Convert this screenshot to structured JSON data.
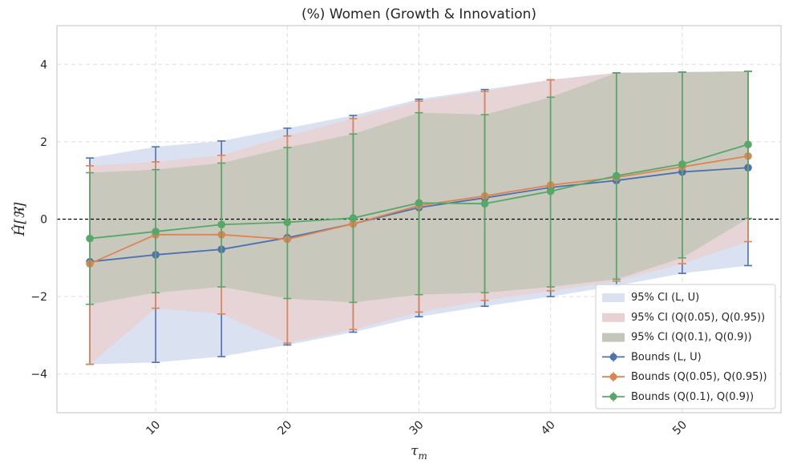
{
  "chart_data": {
    "type": "line",
    "title": "(%) Women (Growth & Innovation)",
    "xlabel": "τ",
    "xlabel_sub": "m",
    "ylabel": "Ĥ[ℜ]",
    "xlim": [
      2.5,
      57.5
    ],
    "ylim": [
      -5,
      5
    ],
    "xticks": [
      10,
      20,
      30,
      40,
      50
    ],
    "yticks": [
      -4,
      -2,
      0,
      2,
      4
    ],
    "x": [
      5,
      10,
      15,
      20,
      25,
      30,
      35,
      40,
      45,
      50,
      55
    ],
    "reference_line": 0,
    "bands": [
      {
        "name": "95% CI (L, U)",
        "color": "#dae1f1",
        "lower": [
          -3.75,
          -3.7,
          -3.55,
          -3.25,
          -2.92,
          -2.52,
          -2.25,
          -2.0,
          -1.72,
          -1.4,
          -1.2
        ],
        "upper": [
          1.58,
          1.87,
          2.02,
          2.35,
          2.68,
          3.1,
          3.35,
          3.6,
          3.78,
          3.8,
          3.82
        ]
      },
      {
        "name": "95% CI (Q(0.05), Q(0.95))",
        "color": "#e7d1d2",
        "lower": [
          -3.75,
          -2.3,
          -2.45,
          -3.2,
          -2.85,
          -2.4,
          -2.1,
          -1.85,
          -1.6,
          -1.15,
          -0.58
        ],
        "upper": [
          1.38,
          1.48,
          1.65,
          2.15,
          2.6,
          3.05,
          3.3,
          3.6,
          3.78,
          3.8,
          3.82
        ]
      },
      {
        "name": "95% CI (Q(0.1), Q(0.9))",
        "color": "#c3c6b9",
        "lower": [
          -2.2,
          -1.9,
          -1.75,
          -2.05,
          -2.15,
          -1.95,
          -1.9,
          -1.75,
          -1.55,
          -1.0,
          0.02
        ],
        "upper": [
          1.2,
          1.28,
          1.45,
          1.85,
          2.2,
          2.75,
          2.7,
          3.15,
          3.78,
          3.8,
          3.82
        ]
      }
    ],
    "series": [
      {
        "name": "Bounds (L, U)",
        "color": "#4c72b0",
        "values": [
          -1.1,
          -0.92,
          -0.78,
          -0.48,
          -0.12,
          0.3,
          0.55,
          0.82,
          1.0,
          1.22,
          1.33
        ],
        "err_low": [
          -3.75,
          -3.7,
          -3.55,
          -3.25,
          -2.92,
          -2.52,
          -2.25,
          -2.0,
          -1.72,
          -1.4,
          -1.2
        ],
        "err_high": [
          1.58,
          1.87,
          2.02,
          2.35,
          2.68,
          3.1,
          3.35,
          3.6,
          3.78,
          3.8,
          3.82
        ]
      },
      {
        "name": "Bounds (Q(0.05), Q(0.95))",
        "color": "#dd8452",
        "values": [
          -1.15,
          -0.4,
          -0.4,
          -0.52,
          -0.12,
          0.35,
          0.6,
          0.88,
          1.08,
          1.35,
          1.63
        ],
        "err_low": [
          -3.75,
          -2.3,
          -2.45,
          -3.2,
          -2.85,
          -2.4,
          -2.1,
          -1.85,
          -1.6,
          -1.15,
          -0.58
        ],
        "err_high": [
          1.38,
          1.48,
          1.65,
          2.15,
          2.6,
          3.05,
          3.3,
          3.6,
          3.78,
          3.8,
          3.82
        ]
      },
      {
        "name": "Bounds (Q(0.1), Q(0.9))",
        "color": "#55a868",
        "values": [
          -0.5,
          -0.32,
          -0.14,
          -0.08,
          0.03,
          0.42,
          0.4,
          0.72,
          1.12,
          1.42,
          1.93
        ],
        "err_low": [
          -2.2,
          -1.9,
          -1.75,
          -2.05,
          -2.15,
          -1.95,
          -1.9,
          -1.75,
          -1.55,
          -1.0,
          0.02
        ],
        "err_high": [
          1.2,
          1.28,
          1.45,
          1.85,
          2.2,
          2.75,
          2.7,
          3.15,
          3.78,
          3.8,
          3.82
        ]
      }
    ],
    "legend": {
      "placement": "lower-right",
      "band_labels": [
        "95% CI (L, U)",
        "95% CI (Q(0.05), Q(0.95))",
        "95% CI (Q(0.1), Q(0.9))"
      ],
      "line_labels": [
        "Bounds (L, U)",
        "Bounds (Q(0.05), Q(0.95))",
        "Bounds (Q(0.1), Q(0.9))"
      ]
    }
  }
}
